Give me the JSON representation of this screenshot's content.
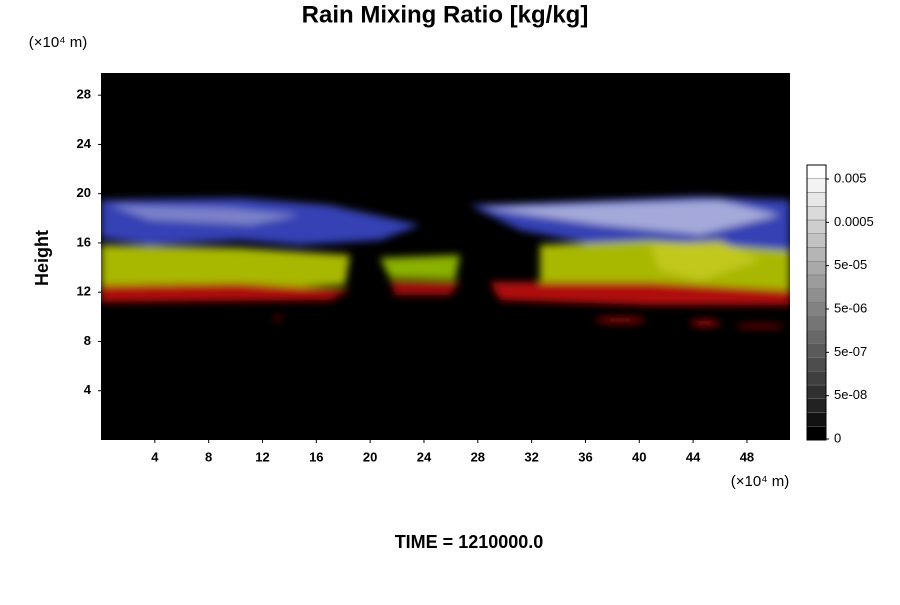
{
  "chart_data": {
    "type": "volume-render",
    "title": "Rain Mixing Ratio [kg/kg]",
    "ylabel": "Height",
    "x_unit": "(×10⁴ m)",
    "y_unit": "(×10⁴ m)",
    "footer": "TIME = 1210000.0",
    "xlim": [
      0,
      51.2
    ],
    "xticks": [
      4,
      8,
      12,
      16,
      20,
      24,
      28,
      32,
      36,
      40,
      44,
      48
    ],
    "ylim": [
      0,
      29.8
    ],
    "yticks": [
      4,
      8,
      12,
      16,
      20,
      24,
      28
    ],
    "colorbar_scale": "log",
    "colorbar_ticks": [
      {
        "value": 0.005,
        "label": "0.005"
      },
      {
        "value": 0.0005,
        "label": "0.0005"
      },
      {
        "value": 5e-05,
        "label": "5e-05"
      },
      {
        "value": 5e-06,
        "label": "5e-06"
      },
      {
        "value": 5e-07,
        "label": "5e-07"
      },
      {
        "value": 5e-08,
        "label": "5e-08"
      },
      0
    ]
  }
}
